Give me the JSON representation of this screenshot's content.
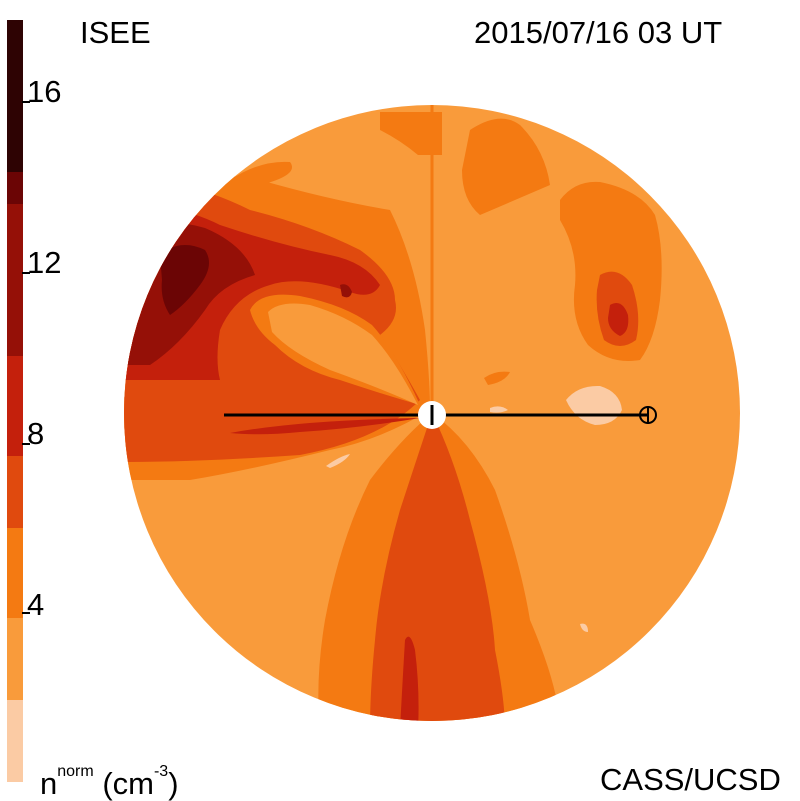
{
  "header": {
    "source": "ISEE",
    "timestamp": "2015/07/16 03 UT"
  },
  "footer": {
    "units_main": "n",
    "units_sup": "norm",
    "units_tail": " (cm",
    "units_exp": "-3",
    "units_close": ")",
    "credit": "CASS/UCSD"
  },
  "colorbar": {
    "ticks": [
      "4",
      "8",
      "12",
      "16"
    ],
    "colors": [
      "#fbcba4",
      "#f99b3b",
      "#f47a12",
      "#e04a0e",
      "#c4200c",
      "#951007",
      "#6b0505",
      "#2e0303"
    ]
  },
  "palette": {
    "background_level": "#f99b3b",
    "level_2": "#f47a12",
    "level_3": "#e04a0e",
    "level_4": "#c4200c",
    "level_5": "#951007",
    "level_6": "#6b0505",
    "low_level": "#fbcba4"
  }
}
